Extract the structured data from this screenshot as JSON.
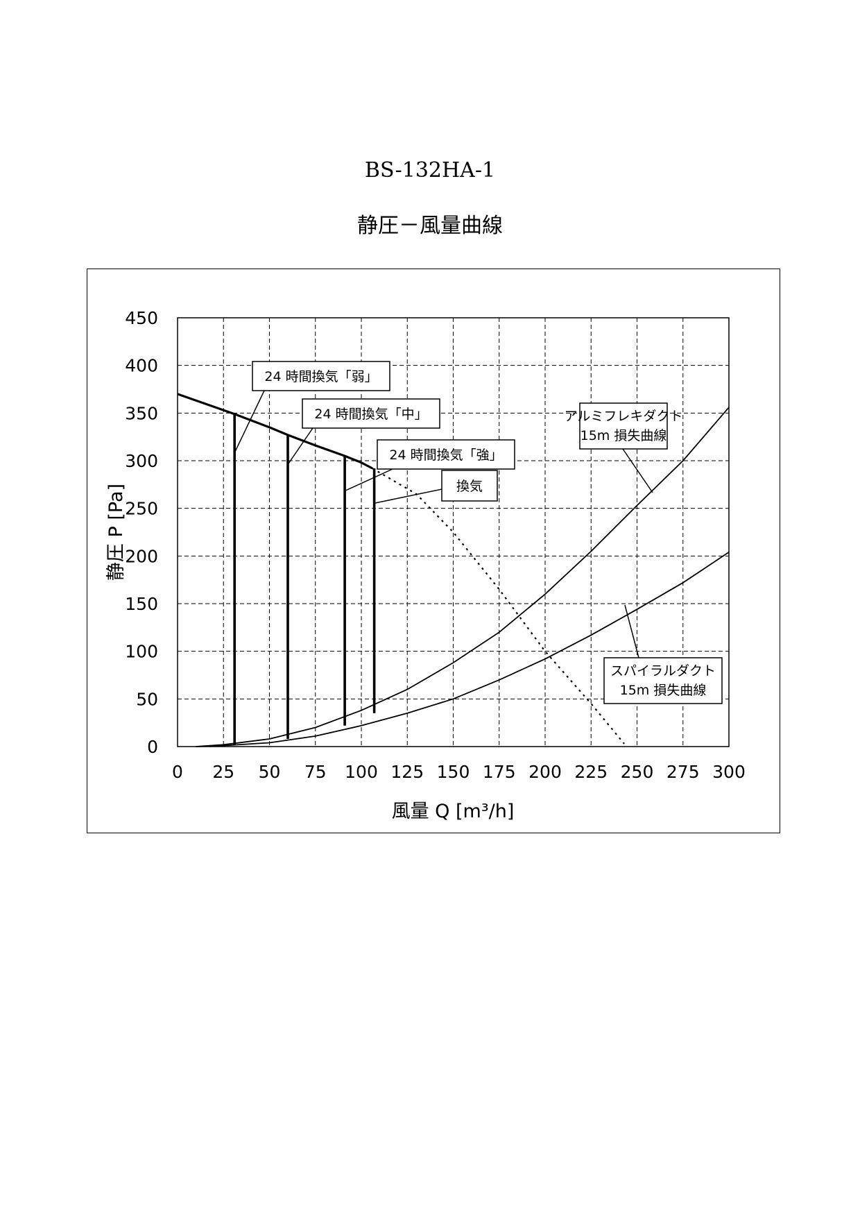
{
  "document": {
    "title": "BS-132HA-1",
    "subtitle": "静圧－風量曲線"
  },
  "chart_data": {
    "type": "line",
    "xlabel": "風量 Q [m³/h]",
    "ylabel": "静圧 P [Pa]",
    "xlim": [
      0,
      300
    ],
    "ylim": [
      0,
      450
    ],
    "xticks": [
      "0",
      "25",
      "50",
      "75",
      "100",
      "125",
      "150",
      "175",
      "200",
      "225",
      "250",
      "275",
      "300"
    ],
    "yticks": [
      "0",
      "50",
      "100",
      "150",
      "200",
      "250",
      "300",
      "350",
      "400",
      "450"
    ],
    "grid": true,
    "grid_style": "dashed",
    "series": [
      {
        "id": "fan",
        "style": "solid-thick",
        "x": [
          0,
          31,
          50,
          60,
          75,
          91,
          100,
          106
        ],
        "y": [
          370,
          349,
          335,
          327,
          316,
          305,
          298,
          292
        ]
      },
      {
        "id": "fan-extension",
        "style": "dotted",
        "x": [
          106,
          130,
          150,
          175,
          200,
          225,
          243
        ],
        "y": [
          292,
          265,
          225,
          165,
          100,
          45,
          3
        ]
      },
      {
        "id": "mode-weak",
        "style": "vertical",
        "x": [
          31,
          31
        ],
        "y": [
          2,
          349
        ]
      },
      {
        "id": "mode-mid",
        "style": "vertical",
        "x": [
          60,
          60
        ],
        "y": [
          8,
          327
        ]
      },
      {
        "id": "mode-strong",
        "style": "vertical",
        "x": [
          91,
          91
        ],
        "y": [
          22,
          305
        ]
      },
      {
        "id": "mode-vent",
        "style": "vertical",
        "x": [
          107,
          107
        ],
        "y": [
          35,
          292
        ]
      },
      {
        "id": "aluminum-flex-duct",
        "name": "アルミフレキダクト 15m 損失曲線",
        "style": "solid",
        "x": [
          10,
          25,
          50,
          75,
          100,
          125,
          150,
          175,
          200,
          225,
          250,
          275,
          300
        ],
        "y": [
          0,
          2,
          8,
          20,
          38,
          60,
          88,
          120,
          160,
          205,
          253,
          300,
          356
        ]
      },
      {
        "id": "spiral-duct",
        "name": "スパイラルダクト 15m 損失曲線",
        "style": "solid",
        "x": [
          10,
          25,
          50,
          75,
          100,
          125,
          150,
          175,
          200,
          225,
          250,
          275,
          300
        ],
        "y": [
          0,
          1,
          4,
          11,
          22,
          35,
          50,
          70,
          92,
          117,
          144,
          172,
          204
        ]
      }
    ],
    "annotations": [
      {
        "id": "weak",
        "text": "24 時間換気「弱」"
      },
      {
        "id": "mid",
        "text": "24 時間換気「中」"
      },
      {
        "id": "strong",
        "text": "24 時間換気「強」"
      },
      {
        "id": "vent",
        "text": "換気"
      },
      {
        "id": "alu",
        "lines": [
          "アルミフレキダクト",
          "15m 損失曲線"
        ]
      },
      {
        "id": "spiral",
        "lines": [
          "スパイラルダクト",
          "15m 損失曲線"
        ]
      }
    ]
  }
}
